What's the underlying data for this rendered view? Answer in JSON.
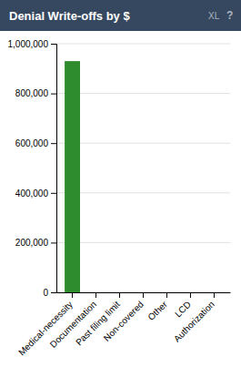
{
  "chart_data": {
    "type": "bar",
    "title": "Denial Write-offs by $",
    "annotations": [
      "XL",
      "?"
    ],
    "categories": [
      "Medical-necessity",
      "Documentation",
      "Past filing limit",
      "Non-covered",
      "Other",
      "LCD",
      "Authorization"
    ],
    "values": [
      930000,
      0,
      0,
      0,
      0,
      0,
      0
    ],
    "color": "#2e8b2e",
    "ylim": [
      0,
      1000000
    ],
    "yticks": [
      0,
      {
        "value": 200000,
        "label": "200,000"
      },
      {
        "value": 400000,
        "label": "400,000"
      },
      {
        "value": 600000,
        "label": "600,000"
      },
      {
        "value": 800000,
        "label": "800,000"
      },
      {
        "value": 1000000,
        "label": "1,000,000"
      }
    ],
    "grid": true
  }
}
